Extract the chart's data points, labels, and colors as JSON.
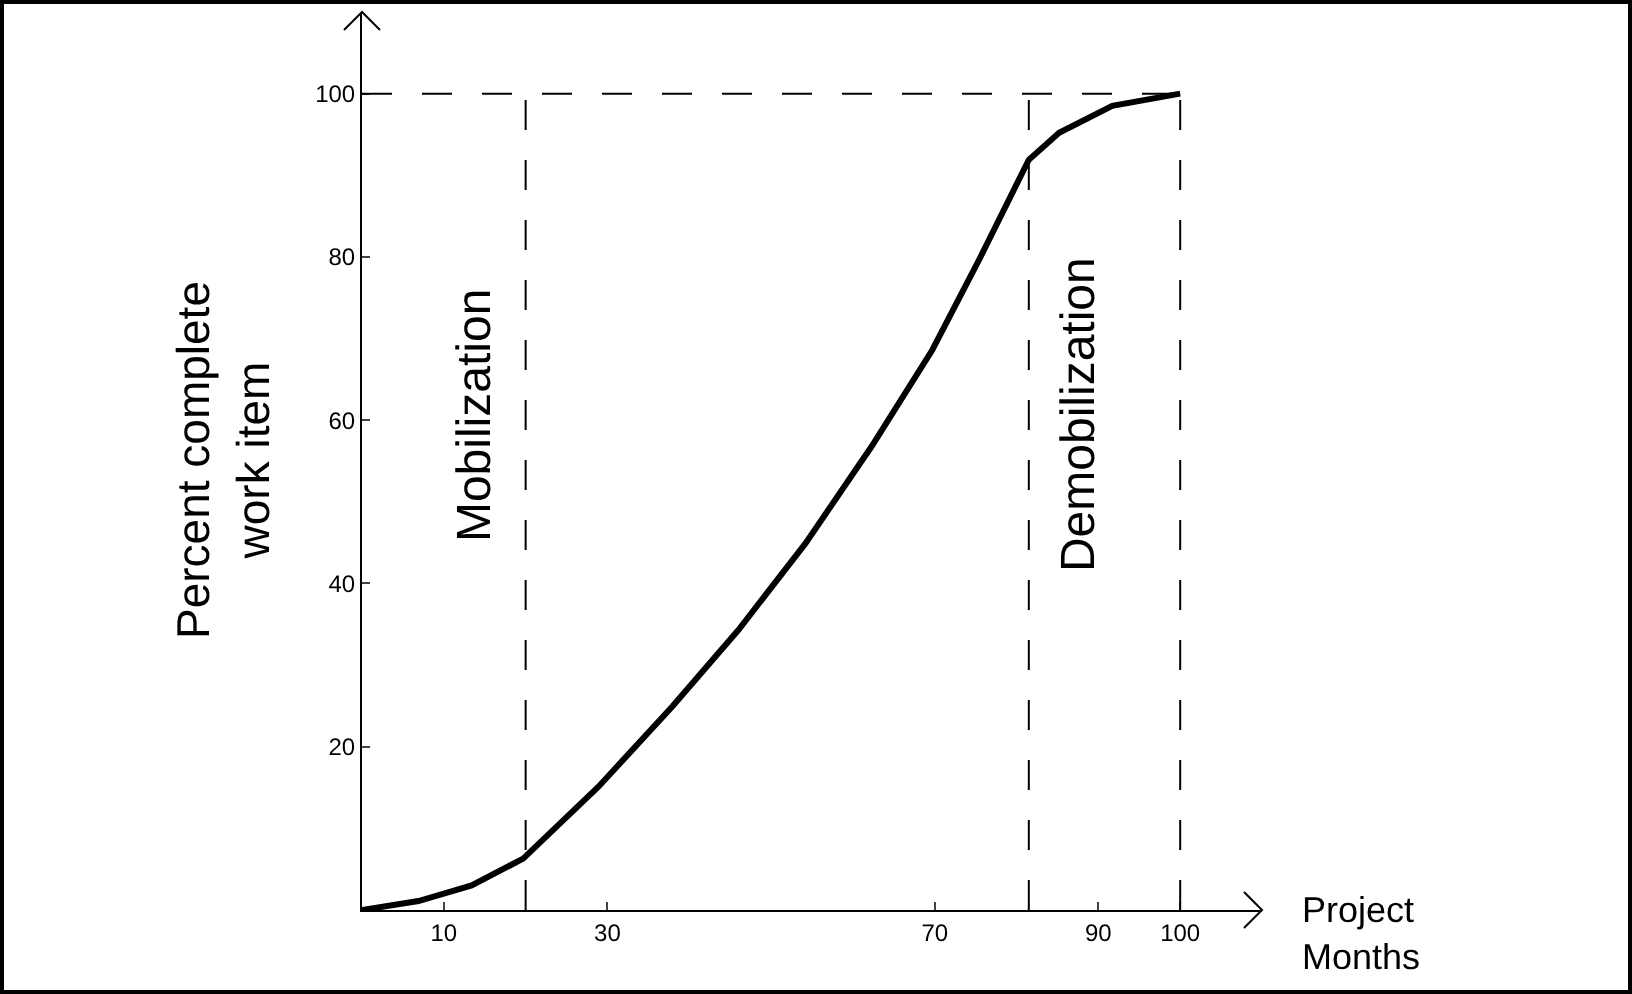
{
  "chart_data": {
    "type": "line",
    "xlabel": "Project\nMonths",
    "ylabel": "Percent complete\nwork item",
    "x": [
      0,
      6.9,
      13.4,
      19.7,
      28.9,
      37.9,
      46,
      54.2,
      62.3,
      69.7,
      75.4,
      81.5,
      85.2,
      91.7,
      100
    ],
    "series": [
      {
        "color": "#000000",
        "values": [
          0,
          1.1,
          3,
          6.3,
          15.1,
          24.9,
          34.3,
          44.9,
          56.8,
          68.6,
          79.6,
          91.9,
          95.2,
          98.5,
          100
        ]
      }
    ],
    "xlim": [
      0,
      110
    ],
    "ylim": [
      0,
      110
    ],
    "xticks": [
      10,
      30,
      70,
      90,
      100
    ],
    "yticks": [
      20,
      40,
      60,
      80,
      100
    ],
    "marker": "none",
    "line_style": "solid",
    "ref_lines": [
      {
        "axis": "x",
        "value": 20,
        "line_style": "dashed"
      },
      {
        "axis": "x",
        "value": 81.5,
        "line_style": "dashed"
      },
      {
        "axis": "x",
        "value": 100,
        "line_style": "dashed"
      },
      {
        "axis": "y",
        "value": 100,
        "line_style": "dashed"
      }
    ],
    "annotations": [
      "Mobilization",
      "Demobilization"
    ]
  }
}
